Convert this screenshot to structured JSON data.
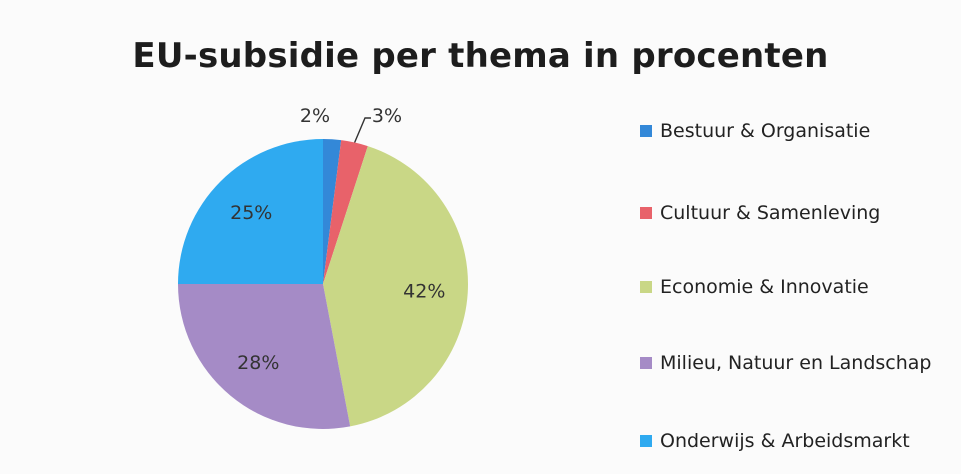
{
  "chart_data": {
    "type": "pie",
    "title": "EU-subsidie per thema in procenten",
    "categories": [
      "Bestuur & Organisatie",
      "Cultuur & Samenleving",
      "Economie & Innovatie",
      "Milieu, Natuur en Landschap",
      "Onderwijs & Arbeidsmarkt"
    ],
    "values": [
      2,
      3,
      42,
      28,
      25
    ],
    "value_labels": [
      "2%",
      "3%",
      "42%",
      "28%",
      "25%"
    ],
    "colors": [
      "#3388d8",
      "#e8626a",
      "#c9d786",
      "#a58bc6",
      "#2faaf0"
    ],
    "legend_position": "right",
    "start_angle_deg": 0,
    "direction": "clockwise"
  }
}
